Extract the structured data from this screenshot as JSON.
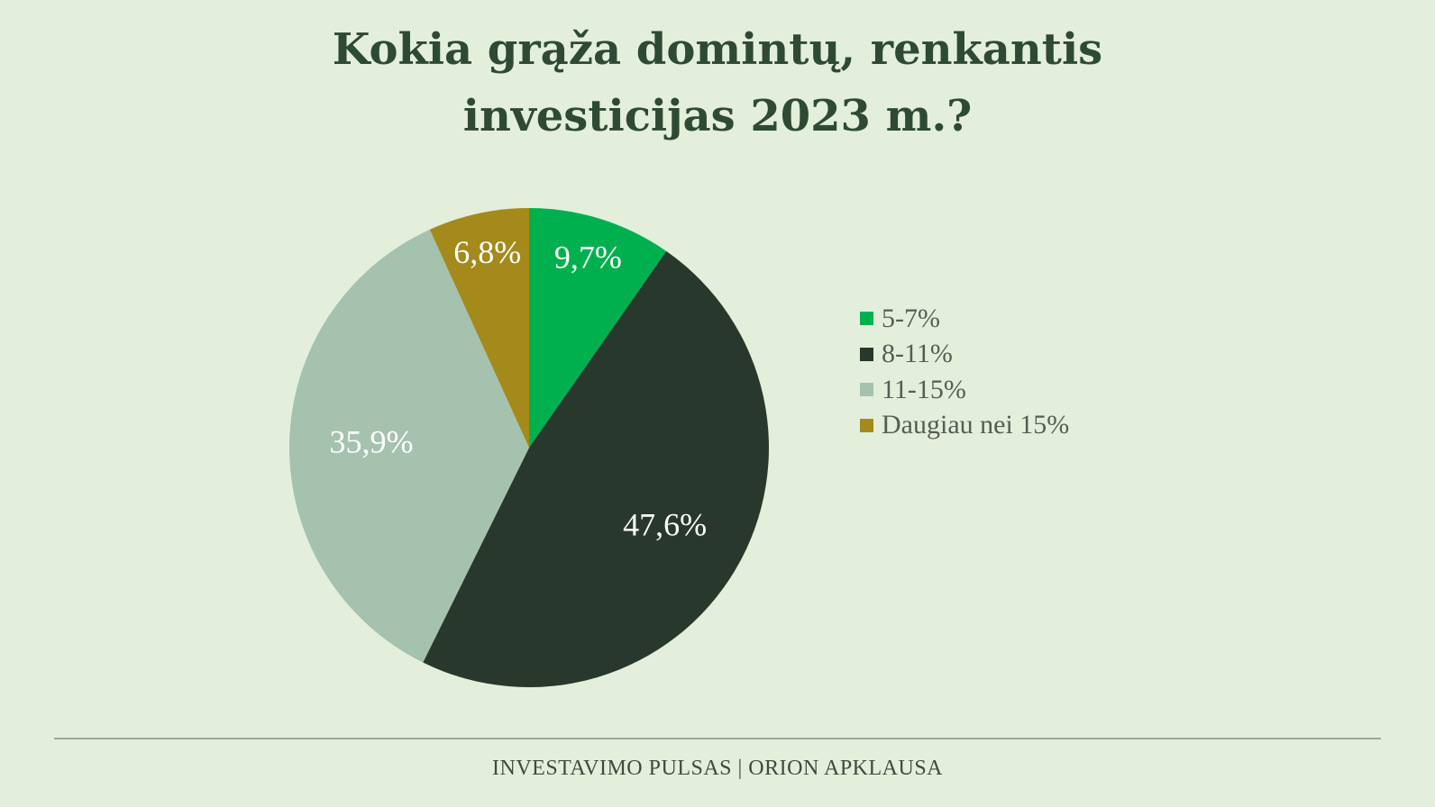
{
  "chart_data": {
    "type": "pie",
    "title_lines": [
      "Kokia grąža domintų, renkantis",
      "investicijas 2023 m.?"
    ],
    "categories": [
      "5-7%",
      "8-11%",
      "11-15%",
      "Daugiau nei 15%"
    ],
    "values": [
      9.7,
      47.6,
      35.9,
      6.8
    ],
    "value_labels": [
      "9,7%",
      "47,6%",
      "35,9%",
      "6,8%"
    ],
    "colors": [
      "#00b04f",
      "#29382c",
      "#a5c2af",
      "#a38a1b"
    ],
    "label_colors": [
      "#ffffff",
      "#ffffff",
      "#ffffff",
      "#ffffff"
    ],
    "legend_position": "right"
  },
  "footer": {
    "source": "INVESTAVIMO PULSAS | ORION APKLAUSA"
  }
}
